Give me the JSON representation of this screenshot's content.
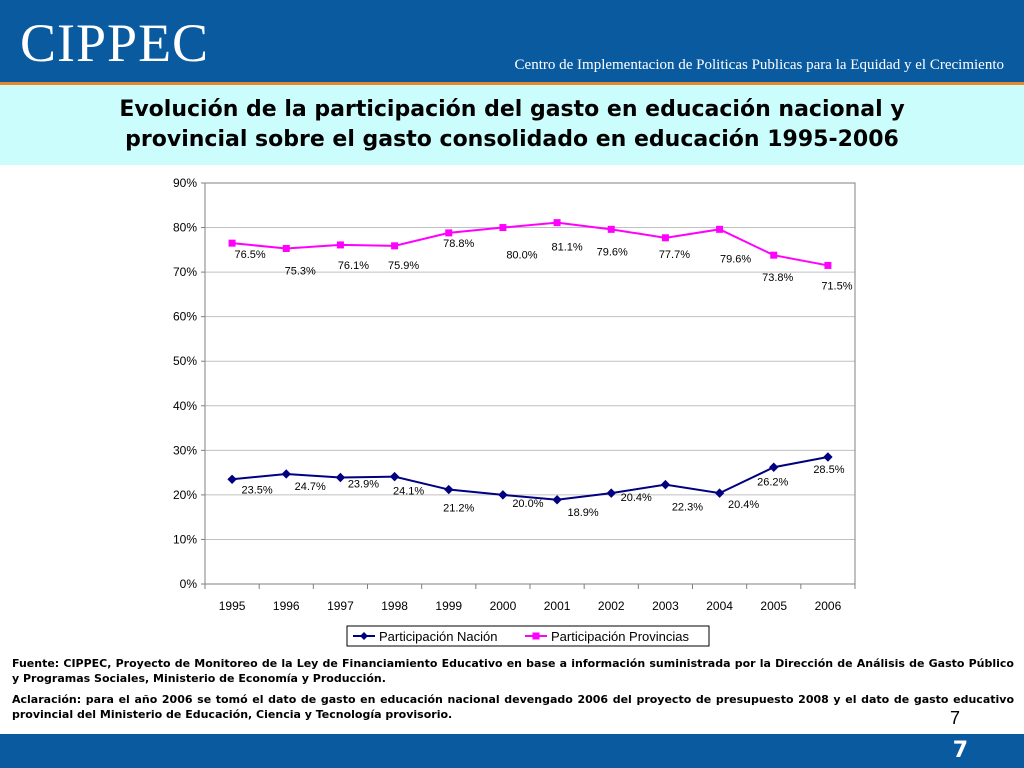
{
  "header": {
    "logo": "CIPPEC",
    "subtitle": "Centro de Implementacion de Politicas Publicas para la Equidad y el Crecimiento"
  },
  "title": {
    "line1": "Evolución de la participación del gasto en educación nacional y",
    "line2": "provincial sobre el gasto consolidado en educación 1995-2006"
  },
  "chart_data": {
    "type": "line",
    "x": [
      "1995",
      "1996",
      "1997",
      "1998",
      "1999",
      "2000",
      "2001",
      "2002",
      "2003",
      "2004",
      "2005",
      "2006"
    ],
    "series": [
      {
        "name": "Participación Nación",
        "color": "#000080",
        "marker": "diamond",
        "values": [
          23.5,
          24.7,
          23.9,
          24.1,
          21.2,
          20.0,
          18.9,
          20.4,
          22.3,
          20.4,
          26.2,
          28.5
        ],
        "labels": [
          "23.5%",
          "24.7%",
          "23.9%",
          "24.1%",
          "21.2%",
          "20.0%",
          "18.9%",
          "20.4%",
          "22.3%",
          "20.4%",
          "26.2%",
          "28.5%"
        ]
      },
      {
        "name": "Participación Provincias",
        "color": "#ff00ff",
        "marker": "square",
        "values": [
          76.5,
          75.3,
          76.1,
          75.9,
          78.8,
          80.0,
          81.1,
          79.6,
          77.7,
          79.6,
          73.8,
          71.5
        ],
        "labels": [
          "76.5%",
          "75.3%",
          "76.1%",
          "75.9%",
          "78.8%",
          "80.0%",
          "81.1%",
          "79.6%",
          "77.7%",
          "79.6%",
          "73.8%",
          "71.5%"
        ]
      }
    ],
    "yticks": [
      "0%",
      "10%",
      "20%",
      "30%",
      "40%",
      "50%",
      "60%",
      "70%",
      "80%",
      "90%"
    ],
    "ylim": [
      0,
      90
    ],
    "grid": true,
    "legend": "bottom",
    "title": "",
    "xlabel": "",
    "ylabel": ""
  },
  "notes": {
    "fuente": "Fuente: CIPPEC, Proyecto de Monitoreo de la Ley de Financiamiento Educativo en base a información suministrada por la Dirección de Análisis de Gasto Público y Programas Sociales, Ministerio de Economía y Producción.",
    "aclaracion": "Aclaración: para el año 2006 se tomó el dato de gasto en educación nacional devengado 2006 del proyecto de presupuesto 2008 y el dato de gasto educativo provincial  del Ministerio de Educación, Ciencia y Tecnología provisorio."
  },
  "page": {
    "small": "7",
    "large": "7"
  }
}
